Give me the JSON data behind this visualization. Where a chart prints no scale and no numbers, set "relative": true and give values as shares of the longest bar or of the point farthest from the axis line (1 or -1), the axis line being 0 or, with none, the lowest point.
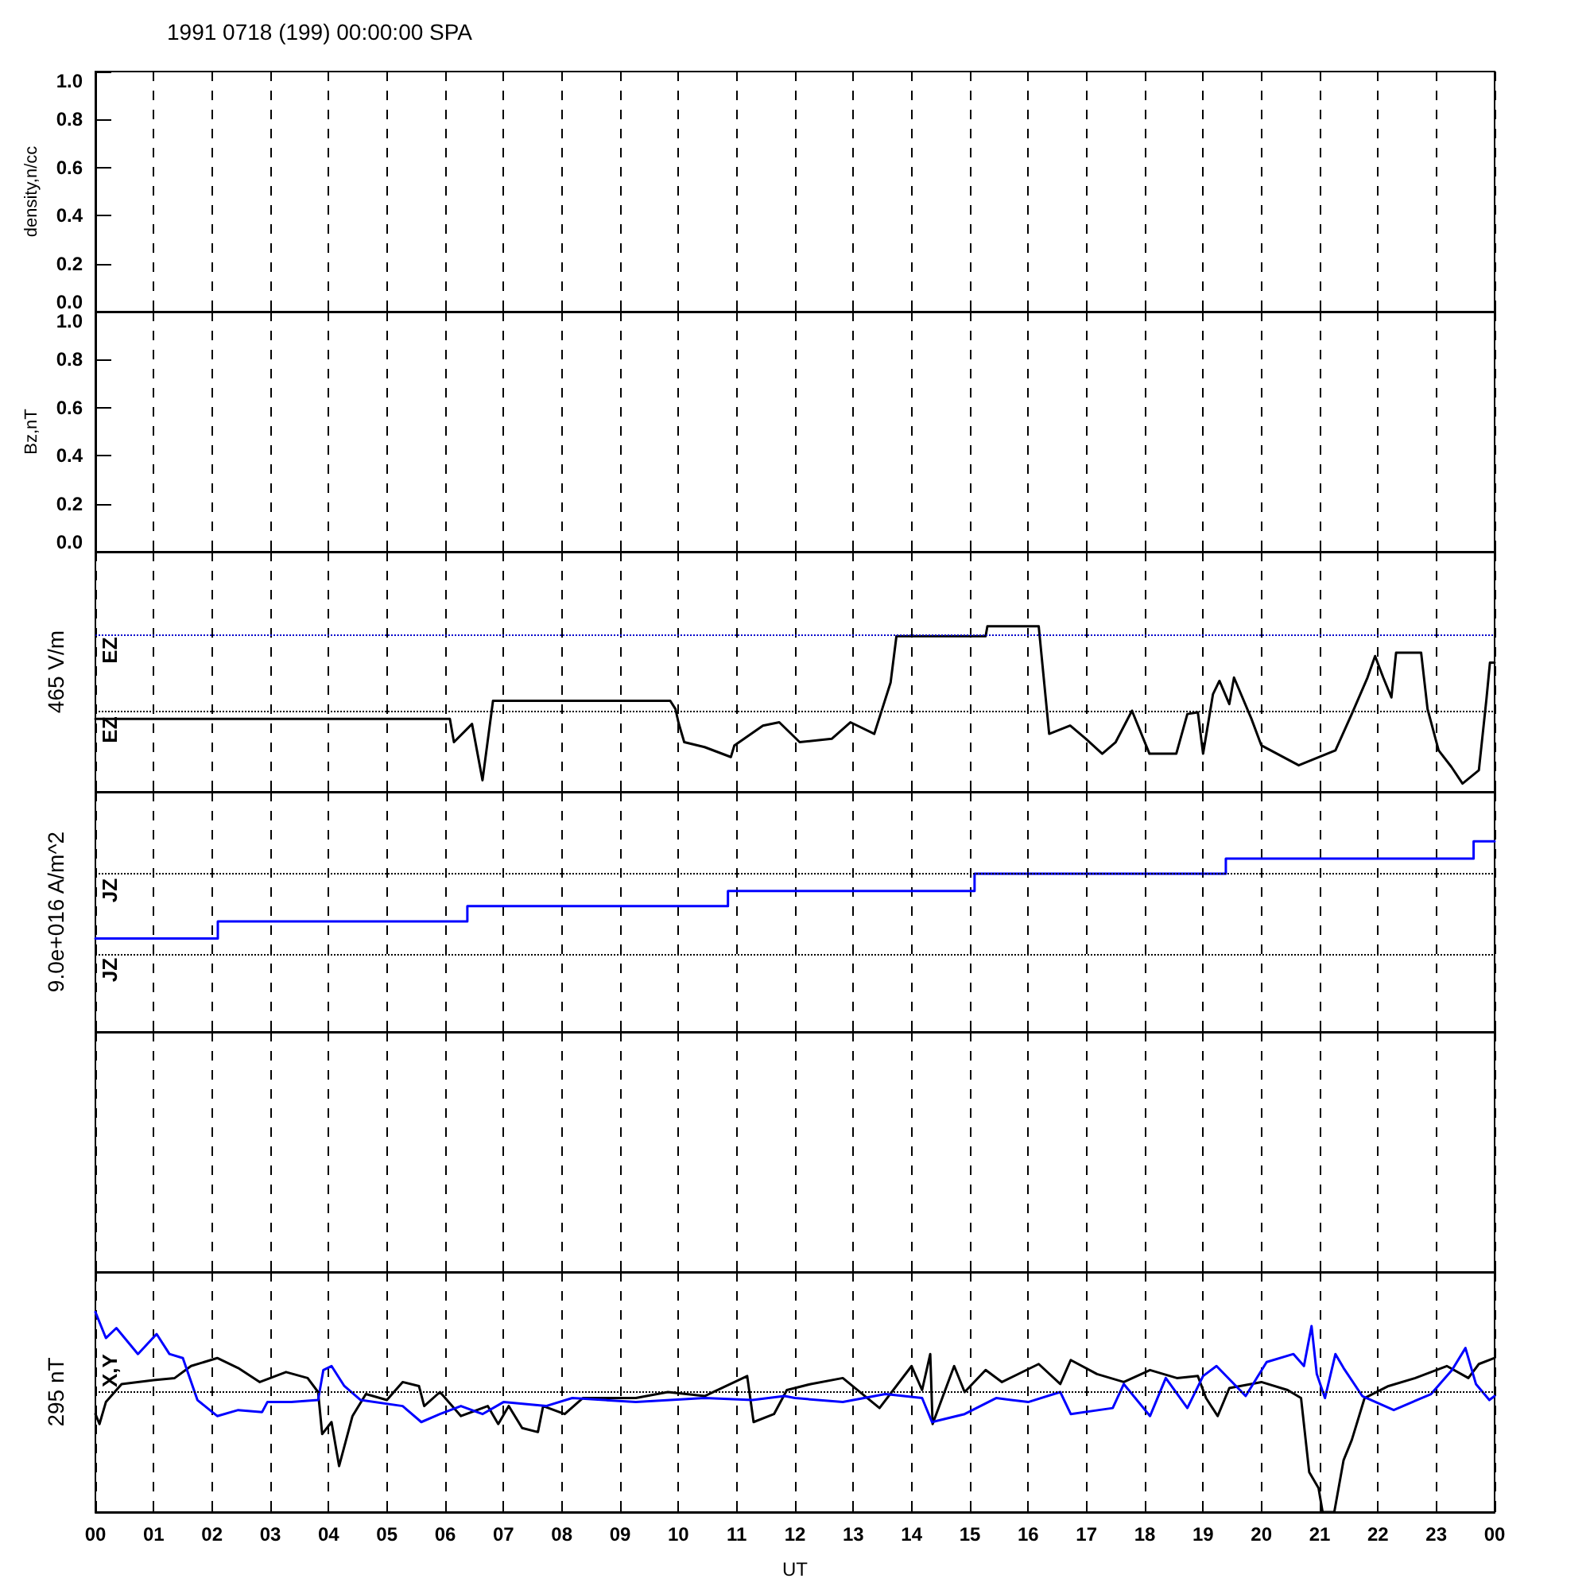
{
  "chart_data": [
    {
      "type": "line",
      "title": "1991 0718 (199) 00:00:00 SPA",
      "ylabel": "density,n/cc",
      "xlim": [
        0,
        24
      ],
      "xticks": [
        {
          "value": 0,
          "label": null
        },
        {
          "value": 1,
          "label": null
        },
        {
          "value": 2,
          "label": null
        },
        {
          "value": 3,
          "label": null
        },
        {
          "value": 4,
          "label": null
        },
        {
          "value": 5,
          "label": null
        },
        {
          "value": 6,
          "label": null
        },
        {
          "value": 7,
          "label": null
        },
        {
          "value": 8,
          "label": null
        },
        {
          "value": 9,
          "label": null
        },
        {
          "value": 10,
          "label": null
        },
        {
          "value": 11,
          "label": null
        },
        {
          "value": 12,
          "label": null
        },
        {
          "value": 13,
          "label": null
        },
        {
          "value": 14,
          "label": null
        },
        {
          "value": 15,
          "label": null
        },
        {
          "value": 16,
          "label": null
        },
        {
          "value": 17,
          "label": null
        },
        {
          "value": 18,
          "label": null
        },
        {
          "value": 19,
          "label": null
        },
        {
          "value": 20,
          "label": null
        },
        {
          "value": 21,
          "label": null
        },
        {
          "value": 22,
          "label": null
        },
        {
          "value": 23,
          "label": null
        },
        {
          "value": 24,
          "label": null
        }
      ],
      "ylim": [
        0,
        1
      ],
      "yticks": [
        {
          "value": 0,
          "label": "0.0"
        },
        {
          "value": 0.2,
          "label": "0.2"
        },
        {
          "value": 0.4,
          "label": "0.4"
        },
        {
          "value": 0.6,
          "label": "0.6"
        },
        {
          "value": 0.8,
          "label": "0.8"
        },
        {
          "value": 1,
          "label": "1.0"
        }
      ],
      "grid": "x",
      "tick_labels": "y"
    },
    {
      "type": "line",
      "ylabel": "Bz,nT",
      "xlim": [
        0,
        24
      ],
      "xticks": [
        {
          "value": 0,
          "label": null
        },
        {
          "value": 1,
          "label": null
        },
        {
          "value": 2,
          "label": null
        },
        {
          "value": 3,
          "label": null
        },
        {
          "value": 4,
          "label": null
        },
        {
          "value": 5,
          "label": null
        },
        {
          "value": 6,
          "label": null
        },
        {
          "value": 7,
          "label": null
        },
        {
          "value": 8,
          "label": null
        },
        {
          "value": 9,
          "label": null
        },
        {
          "value": 10,
          "label": null
        },
        {
          "value": 11,
          "label": null
        },
        {
          "value": 12,
          "label": null
        },
        {
          "value": 13,
          "label": null
        },
        {
          "value": 14,
          "label": null
        },
        {
          "value": 15,
          "label": null
        },
        {
          "value": 16,
          "label": null
        },
        {
          "value": 17,
          "label": null
        },
        {
          "value": 18,
          "label": null
        },
        {
          "value": 19,
          "label": null
        },
        {
          "value": 20,
          "label": null
        },
        {
          "value": 21,
          "label": null
        },
        {
          "value": 22,
          "label": null
        },
        {
          "value": 23,
          "label": null
        },
        {
          "value": 24,
          "label": null
        }
      ],
      "ylim": [
        0,
        1
      ],
      "yticks": [
        {
          "value": 0,
          "label": "0.0"
        },
        {
          "value": 0.2,
          "label": "0.2"
        },
        {
          "value": 0.4,
          "label": "0.4"
        },
        {
          "value": 0.6,
          "label": "0.6"
        },
        {
          "value": 0.8,
          "label": "0.8"
        },
        {
          "value": 1,
          "label": "1.0"
        }
      ],
      "grid": "x",
      "tick_labels": "y"
    },
    {
      "type": "line",
      "relative": true,
      "ylabel": "465 V/m",
      "annotations": [
        "EZ",
        "EZ"
      ],
      "xlim": [
        0,
        24
      ],
      "xticks": [
        {
          "value": 0,
          "label": null
        },
        {
          "value": 1,
          "label": null
        },
        {
          "value": 2,
          "label": null
        },
        {
          "value": 3,
          "label": null
        },
        {
          "value": 4,
          "label": null
        },
        {
          "value": 5,
          "label": null
        },
        {
          "value": 6,
          "label": null
        },
        {
          "value": 7,
          "label": null
        },
        {
          "value": 8,
          "label": null
        },
        {
          "value": 9,
          "label": null
        },
        {
          "value": 10,
          "label": null
        },
        {
          "value": 11,
          "label": null
        },
        {
          "value": 12,
          "label": null
        },
        {
          "value": 13,
          "label": null
        },
        {
          "value": 14,
          "label": null
        },
        {
          "value": 15,
          "label": null
        },
        {
          "value": 16,
          "label": null
        },
        {
          "value": 17,
          "label": null
        },
        {
          "value": 18,
          "label": null
        },
        {
          "value": 19,
          "label": null
        },
        {
          "value": 20,
          "label": null
        },
        {
          "value": 21,
          "label": null
        },
        {
          "value": 22,
          "label": null
        },
        {
          "value": 23,
          "label": null
        },
        {
          "value": 24,
          "label": null
        }
      ],
      "grid": "x",
      "tick_labels": false,
      "marker": "none",
      "ref_lines": [
        {
          "axis": "y",
          "value": 0.95,
          "color": "#0000cc",
          "line_style": "dotted"
        },
        {
          "axis": "y",
          "value": 0.49,
          "color": "#000000",
          "line_style": "dotted"
        }
      ],
      "series": [
        {
          "color": "#000000",
          "x": [
            0,
            6.08,
            6.15,
            6.46,
            6.64,
            6.82,
            9.86,
            9.95,
            10.0,
            10.1,
            10.45,
            10.9,
            10.96,
            11.45,
            11.73,
            12.08,
            12.63,
            12.95,
            13.36,
            13.64,
            13.74,
            15.27,
            15.3,
            16.18,
            16.36,
            16.72,
            16.99,
            17.27,
            17.5,
            17.78,
            18.08,
            18.54,
            18.73,
            18.91,
            19.0,
            19.17,
            19.28,
            19.45,
            19.53,
            19.83,
            20.0,
            20.64,
            21.27,
            21.55,
            21.82,
            21.95,
            22.09,
            22.23,
            22.31,
            22.74,
            22.85,
            23.04,
            23.26,
            23.45,
            23.73,
            23.86,
            23.92,
            24
          ],
          "values": [
            0.44,
            0.44,
            0.3,
            0.41,
            0.07,
            0.55,
            0.55,
            0.5,
            0.42,
            0.3,
            0.27,
            0.21,
            0.28,
            0.4,
            0.42,
            0.3,
            0.32,
            0.42,
            0.35,
            0.66,
            0.94,
            0.94,
            1.0,
            1.0,
            0.35,
            0.4,
            0.32,
            0.23,
            0.3,
            0.49,
            0.23,
            0.23,
            0.47,
            0.48,
            0.23,
            0.59,
            0.67,
            0.53,
            0.69,
            0.44,
            0.28,
            0.16,
            0.25,
            0.47,
            0.69,
            0.82,
            0.69,
            0.57,
            0.84,
            0.84,
            0.5,
            0.25,
            0.15,
            0.05,
            0.13,
            0.56,
            0.78,
            0.78
          ]
        }
      ]
    },
    {
      "type": "step",
      "relative": true,
      "ylabel": "9.0e+016 A/m^2",
      "annotations": [
        "JZ",
        "JZ"
      ],
      "xlim": [
        0,
        24
      ],
      "xticks": [
        {
          "value": 0,
          "label": null
        },
        {
          "value": 1,
          "label": null
        },
        {
          "value": 2,
          "label": null
        },
        {
          "value": 3,
          "label": null
        },
        {
          "value": 4,
          "label": null
        },
        {
          "value": 5,
          "label": null
        },
        {
          "value": 6,
          "label": null
        },
        {
          "value": 7,
          "label": null
        },
        {
          "value": 8,
          "label": null
        },
        {
          "value": 9,
          "label": null
        },
        {
          "value": 10,
          "label": null
        },
        {
          "value": 11,
          "label": null
        },
        {
          "value": 12,
          "label": null
        },
        {
          "value": 13,
          "label": null
        },
        {
          "value": 14,
          "label": null
        },
        {
          "value": 15,
          "label": null
        },
        {
          "value": 16,
          "label": null
        },
        {
          "value": 17,
          "label": null
        },
        {
          "value": 18,
          "label": null
        },
        {
          "value": 19,
          "label": null
        },
        {
          "value": 20,
          "label": null
        },
        {
          "value": 21,
          "label": null
        },
        {
          "value": 22,
          "label": null
        },
        {
          "value": 23,
          "label": null
        },
        {
          "value": 24,
          "label": null
        }
      ],
      "grid": "x",
      "tick_labels": false,
      "marker": "none",
      "ref_lines": [
        {
          "axis": "y",
          "value": 0.83,
          "color": "#000000",
          "line_style": "dotted"
        },
        {
          "axis": "y",
          "value": 0.41,
          "color": "#000000",
          "line_style": "dotted"
        }
      ],
      "series": [
        {
          "color": "#0000ff",
          "x": [
            0,
            2.1,
            6.38,
            10.85,
            15.08,
            19.39,
            23.64,
            24
          ],
          "values": [
            0.49,
            0.58,
            0.66,
            0.74,
            0.83,
            0.91,
            1.0,
            1.0
          ]
        }
      ]
    },
    {
      "type": "other"
    },
    {
      "type": "line",
      "relative": true,
      "ylabel": "295 nT",
      "xlabel": "UT",
      "annotations": [
        "X,Y"
      ],
      "xlim": [
        0,
        24
      ],
      "xticks": [
        {
          "value": 0,
          "label": "00"
        },
        {
          "value": 1,
          "label": "01"
        },
        {
          "value": 2,
          "label": "02"
        },
        {
          "value": 3,
          "label": "03"
        },
        {
          "value": 4,
          "label": "04"
        },
        {
          "value": 5,
          "label": "05"
        },
        {
          "value": 6,
          "label": "06"
        },
        {
          "value": 7,
          "label": "07"
        },
        {
          "value": 8,
          "label": "08"
        },
        {
          "value": 9,
          "label": "09"
        },
        {
          "value": 10,
          "label": "10"
        },
        {
          "value": 11,
          "label": "11"
        },
        {
          "value": 12,
          "label": "12"
        },
        {
          "value": 13,
          "label": "13"
        },
        {
          "value": 14,
          "label": "14"
        },
        {
          "value": 15,
          "label": "15"
        },
        {
          "value": 16,
          "label": "16"
        },
        {
          "value": 17,
          "label": "17"
        },
        {
          "value": 18,
          "label": "18"
        },
        {
          "value": 19,
          "label": "19"
        },
        {
          "value": 20,
          "label": "20"
        },
        {
          "value": 21,
          "label": "21"
        },
        {
          "value": 22,
          "label": "22"
        },
        {
          "value": 23,
          "label": "23"
        },
        {
          "value": 24,
          "label": "00"
        }
      ],
      "grid": "x",
      "tick_labels": "x",
      "marker": "none",
      "ref_lines": [
        {
          "axis": "y",
          "value": 0.6,
          "color": "#000000",
          "line_style": "dotted"
        }
      ],
      "series": [
        {
          "color": "#000000",
          "x": [
            0,
            0.07,
            0.18,
            0.45,
            1.0,
            1.36,
            1.64,
            2.09,
            2.45,
            2.82,
            3.27,
            3.64,
            3.82,
            3.89,
            4.05,
            4.18,
            4.41,
            4.64,
            5.0,
            5.27,
            5.55,
            5.64,
            5.91,
            6.27,
            6.73,
            6.91,
            7.09,
            7.32,
            7.59,
            7.68,
            8.05,
            8.36,
            9.27,
            9.82,
            10.45,
            11.18,
            11.29,
            11.64,
            11.86,
            12.27,
            12.82,
            13.45,
            14.0,
            14.18,
            14.32,
            14.36,
            14.73,
            14.91,
            15.27,
            15.55,
            16.18,
            16.55,
            16.73,
            17.18,
            17.64,
            18.09,
            18.55,
            18.91,
            19.05,
            19.25,
            19.45,
            20.0,
            20.45,
            20.68,
            20.82,
            20.98,
            21.05,
            21.25,
            21.41,
            21.55,
            21.77,
            22.18,
            22.64,
            23.18,
            23.55,
            23.73,
            24.0
          ],
          "values": [
            0.49,
            0.44,
            0.55,
            0.64,
            0.66,
            0.67,
            0.73,
            0.77,
            0.72,
            0.65,
            0.7,
            0.67,
            0.6,
            0.39,
            0.45,
            0.23,
            0.48,
            0.59,
            0.56,
            0.65,
            0.63,
            0.53,
            0.6,
            0.48,
            0.53,
            0.44,
            0.53,
            0.42,
            0.4,
            0.53,
            0.49,
            0.57,
            0.57,
            0.6,
            0.58,
            0.68,
            0.45,
            0.49,
            0.61,
            0.64,
            0.67,
            0.52,
            0.73,
            0.61,
            0.79,
            0.44,
            0.73,
            0.6,
            0.71,
            0.65,
            0.74,
            0.64,
            0.76,
            0.69,
            0.65,
            0.71,
            0.67,
            0.68,
            0.57,
            0.48,
            0.62,
            0.65,
            0.61,
            0.57,
            0.2,
            0.12,
            0,
            0,
            0.26,
            0.36,
            0.57,
            0.63,
            0.67,
            0.73,
            0.67,
            0.74,
            0.77
          ]
        },
        {
          "color": "#0000ff",
          "x": [
            0,
            0.18,
            0.36,
            0.73,
            1.05,
            1.27,
            1.5,
            1.75,
            2.09,
            2.45,
            2.86,
            2.95,
            3.36,
            3.82,
            3.91,
            4.05,
            4.27,
            4.55,
            5.27,
            5.59,
            5.91,
            6.27,
            6.64,
            7.0,
            7.73,
            8.18,
            9.27,
            10.45,
            11.27,
            11.82,
            12.0,
            12.82,
            13.55,
            14.18,
            14.35,
            14.91,
            15.45,
            16.0,
            16.55,
            16.73,
            17.45,
            17.64,
            18.09,
            18.36,
            18.73,
            19.0,
            19.23,
            19.73,
            20.09,
            20.55,
            20.73,
            20.86,
            20.95,
            21.09,
            21.27,
            21.41,
            21.73,
            22.27,
            22.91,
            23.27,
            23.5,
            23.68,
            23.91,
            24.0
          ],
          "values": [
            1.0,
            0.87,
            0.92,
            0.79,
            0.89,
            0.79,
            0.77,
            0.56,
            0.48,
            0.51,
            0.5,
            0.55,
            0.55,
            0.56,
            0.71,
            0.73,
            0.63,
            0.56,
            0.53,
            0.45,
            0.49,
            0.53,
            0.49,
            0.55,
            0.53,
            0.57,
            0.55,
            0.57,
            0.56,
            0.58,
            0.57,
            0.55,
            0.59,
            0.57,
            0.45,
            0.49,
            0.57,
            0.55,
            0.6,
            0.49,
            0.52,
            0.64,
            0.48,
            0.67,
            0.52,
            0.68,
            0.73,
            0.58,
            0.75,
            0.79,
            0.73,
            0.93,
            0.69,
            0.57,
            0.79,
            0.72,
            0.58,
            0.51,
            0.59,
            0.71,
            0.82,
            0.64,
            0.56,
            0.58
          ]
        }
      ]
    }
  ]
}
